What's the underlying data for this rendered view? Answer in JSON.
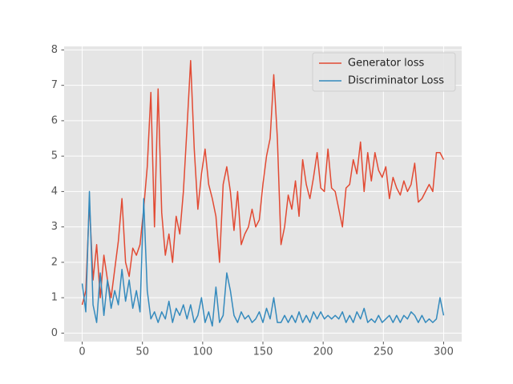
{
  "chart_data": {
    "type": "line",
    "x": [
      0,
      3,
      6,
      9,
      12,
      15,
      18,
      21,
      24,
      27,
      30,
      33,
      36,
      39,
      42,
      45,
      48,
      51,
      54,
      57,
      60,
      63,
      66,
      69,
      72,
      75,
      78,
      81,
      84,
      87,
      90,
      93,
      96,
      99,
      102,
      105,
      108,
      111,
      114,
      117,
      120,
      123,
      126,
      129,
      132,
      135,
      138,
      141,
      144,
      147,
      150,
      153,
      156,
      159,
      162,
      165,
      168,
      171,
      174,
      177,
      180,
      183,
      186,
      189,
      192,
      195,
      198,
      201,
      204,
      207,
      210,
      213,
      216,
      219,
      222,
      225,
      228,
      231,
      234,
      237,
      240,
      243,
      246,
      249,
      252,
      255,
      258,
      261,
      264,
      267,
      270,
      273,
      276,
      279,
      282,
      285,
      288,
      291,
      294,
      297,
      300
    ],
    "series": [
      {
        "name": "Generator loss",
        "color": "#E24A33",
        "values": [
          0.8,
          1.2,
          3.7,
          1.5,
          2.5,
          1.0,
          2.2,
          1.5,
          1.0,
          1.8,
          2.6,
          3.8,
          2.0,
          1.6,
          2.4,
          2.2,
          2.5,
          3.5,
          4.7,
          6.8,
          3.0,
          6.9,
          3.4,
          2.2,
          2.8,
          2.0,
          3.3,
          2.8,
          4.0,
          5.8,
          7.7,
          5.2,
          3.5,
          4.5,
          5.2,
          4.2,
          3.8,
          3.3,
          2.0,
          4.2,
          4.7,
          4.0,
          2.9,
          4.0,
          2.5,
          2.8,
          3.0,
          3.5,
          3.0,
          3.2,
          4.2,
          5.0,
          5.5,
          7.3,
          5.5,
          2.5,
          3.0,
          3.9,
          3.5,
          4.3,
          3.3,
          4.9,
          4.2,
          3.8,
          4.4,
          5.1,
          4.1,
          4.0,
          5.2,
          4.1,
          4.0,
          3.5,
          3.0,
          4.1,
          4.2,
          4.9,
          4.5,
          5.4,
          4.0,
          5.1,
          4.3,
          5.1,
          4.6,
          4.4,
          4.7,
          3.8,
          4.4,
          4.1,
          3.9,
          4.3,
          4.0,
          4.2,
          4.8,
          3.7,
          3.8,
          4.0,
          4.2,
          4.0,
          5.1,
          5.1,
          4.9
        ]
      },
      {
        "name": "Discriminator Loss",
        "color": "#348ABD",
        "values": [
          1.4,
          0.6,
          4.0,
          0.8,
          0.3,
          1.7,
          0.5,
          1.5,
          0.7,
          1.2,
          0.8,
          1.8,
          0.9,
          1.5,
          0.7,
          1.2,
          0.6,
          3.8,
          1.2,
          0.4,
          0.6,
          0.3,
          0.6,
          0.4,
          0.9,
          0.3,
          0.7,
          0.5,
          0.8,
          0.4,
          0.8,
          0.3,
          0.5,
          1.0,
          0.3,
          0.6,
          0.2,
          1.3,
          0.3,
          0.5,
          1.7,
          1.2,
          0.5,
          0.3,
          0.6,
          0.4,
          0.5,
          0.3,
          0.4,
          0.6,
          0.3,
          0.7,
          0.4,
          1.0,
          0.3,
          0.3,
          0.5,
          0.3,
          0.5,
          0.3,
          0.6,
          0.3,
          0.5,
          0.3,
          0.6,
          0.4,
          0.6,
          0.4,
          0.5,
          0.4,
          0.5,
          0.4,
          0.6,
          0.3,
          0.5,
          0.3,
          0.6,
          0.4,
          0.7,
          0.3,
          0.4,
          0.3,
          0.5,
          0.3,
          0.4,
          0.5,
          0.3,
          0.5,
          0.3,
          0.5,
          0.4,
          0.6,
          0.5,
          0.3,
          0.5,
          0.3,
          0.4,
          0.3,
          0.4,
          1.0,
          0.5
        ]
      }
    ],
    "xlim": [
      -15,
      315
    ],
    "ylim": [
      -0.24,
      8.1
    ],
    "xticks": [
      0,
      50,
      100,
      150,
      200,
      250,
      300
    ],
    "yticks": [
      0,
      1,
      2,
      3,
      4,
      5,
      6,
      7,
      8
    ],
    "grid": true,
    "legend": "upper right",
    "background": "#E5E5E5"
  }
}
